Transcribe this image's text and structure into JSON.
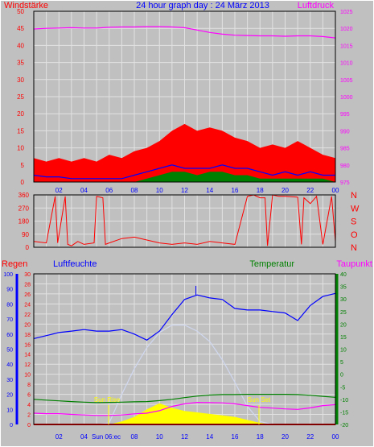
{
  "title": "24 hour graph day : 24 März 2013",
  "colors": {
    "background": "#c0c0c0",
    "grid": "#e2e2e2",
    "wind": "#ff0000",
    "gust_fill": "#ff0000",
    "wind_avg": "#0000ff",
    "wind_low": "#008000",
    "pressure": "#ff00ff",
    "direction": "#ff0000",
    "humidity": "#0000ff",
    "temperature": "#008000",
    "dewpoint": "#ff00ff",
    "rain": "#ff0000",
    "solar": "#ffff00",
    "solar_max": "#d0d8f0",
    "frame": "#000000"
  },
  "chart_data": [
    {
      "type": "line",
      "panel": "wind_pressure",
      "labels": {
        "left": "Windstärke",
        "right": "Luftdruck"
      },
      "x_ticks": [
        "02",
        "04",
        "06",
        "08",
        "10",
        "12",
        "14",
        "16",
        "18",
        "20",
        "22",
        "00"
      ],
      "y_left": {
        "min": 0,
        "max": 50,
        "ticks": [
          0,
          5,
          10,
          15,
          20,
          25,
          30,
          35,
          40,
          45,
          50
        ]
      },
      "y_right": {
        "min": 975,
        "max": 1025,
        "ticks": [
          975,
          980,
          985,
          990,
          995,
          1000,
          1005,
          1010,
          1015,
          1020,
          1025
        ]
      },
      "x": [
        0,
        1,
        2,
        3,
        4,
        5,
        6,
        7,
        8,
        9,
        10,
        11,
        12,
        13,
        14,
        15,
        16,
        17,
        18,
        19,
        20,
        21,
        22,
        23,
        24
      ],
      "series": [
        {
          "key": "gust",
          "values": [
            7,
            6,
            7,
            6,
            7,
            6,
            8,
            7,
            9,
            10,
            12,
            15,
            17,
            15,
            16,
            15,
            13,
            12,
            10,
            11,
            10,
            12,
            10,
            8,
            7
          ]
        },
        {
          "key": "wind",
          "values": [
            5,
            5,
            5,
            5,
            5,
            5,
            5,
            5,
            5,
            5,
            5,
            5,
            5,
            5,
            5,
            5,
            5,
            5,
            5,
            5,
            5,
            5,
            5,
            5,
            5
          ]
        },
        {
          "key": "wind_avg",
          "values": [
            2,
            1.5,
            1.5,
            1,
            1,
            1,
            1,
            1,
            2,
            3,
            4,
            5,
            4,
            4,
            4,
            5,
            4,
            4,
            3,
            2,
            3,
            2,
            3,
            2,
            2
          ]
        },
        {
          "key": "wind_low",
          "values": [
            0,
            0,
            0,
            0,
            0,
            0,
            0,
            0,
            0,
            1,
            2,
            3,
            3,
            2,
            3,
            3,
            2,
            2,
            1,
            1,
            1,
            1,
            1,
            1,
            0
          ]
        },
        {
          "key": "pressure",
          "values": [
            1019.8,
            1020,
            1020.1,
            1020.2,
            1020.1,
            1020.1,
            1020.3,
            1020.4,
            1020.4,
            1020.5,
            1020.5,
            1020.4,
            1020.2,
            1019.5,
            1018.8,
            1018.3,
            1018,
            1017.9,
            1017.8,
            1017.8,
            1017.7,
            1017.8,
            1017.8,
            1017.6,
            1017.2
          ]
        }
      ]
    },
    {
      "type": "line",
      "panel": "wind_direction",
      "y_left": {
        "min": 0,
        "max": 360,
        "ticks": [
          0,
          90,
          180,
          270,
          360
        ]
      },
      "y_right_labels": [
        "N",
        "W",
        "S",
        "O",
        "N"
      ],
      "x": [
        0,
        1,
        1.7,
        1.9,
        2.5,
        2.7,
        3,
        3.5,
        4,
        4.8,
        5,
        5.5,
        5.7,
        6,
        7,
        8,
        9,
        10,
        11,
        12,
        13,
        14,
        15,
        16,
        17,
        17.5,
        18,
        18.4,
        18.6,
        19,
        19.5,
        20,
        21,
        21.3,
        21.5,
        22,
        22.5,
        23,
        23.7,
        24
      ],
      "values": [
        40,
        30,
        350,
        30,
        350,
        20,
        10,
        40,
        20,
        30,
        350,
        340,
        20,
        30,
        60,
        70,
        50,
        30,
        20,
        30,
        20,
        40,
        30,
        20,
        350,
        360,
        340,
        340,
        10,
        360,
        350,
        350,
        345,
        20,
        340,
        300,
        350,
        20,
        350,
        40
      ]
    },
    {
      "type": "line",
      "panel": "humidity_temperature",
      "labels": {
        "rain": "Regen",
        "humidity": "Luftfeuchte",
        "temperature": "Temperatur",
        "dewpoint": "Taupunkt"
      },
      "x_ticks": [
        "02",
        "04",
        "06",
        "08",
        "10",
        "12",
        "14",
        "16",
        "18",
        "20",
        "22",
        "00"
      ],
      "annotations": {
        "sunrise": "Sun Rise",
        "sunset": "Sun Set",
        "sun_time": "Sun 06:ec"
      },
      "y_humidity": {
        "min": 0,
        "max": 100,
        "ticks": [
          0,
          10,
          20,
          30,
          40,
          50,
          60,
          70,
          80,
          90,
          100
        ]
      },
      "y_rain": {
        "min": 0,
        "max": 30,
        "ticks": [
          0,
          2,
          4,
          6,
          8,
          10,
          12,
          14,
          16,
          18,
          20,
          22,
          24,
          26,
          28,
          30
        ]
      },
      "y_temperature": {
        "min": -20,
        "max": 40,
        "ticks": [
          -20,
          -15,
          -10,
          -5,
          0,
          5,
          10,
          15,
          20,
          25,
          30,
          35,
          40
        ]
      },
      "x": [
        0,
        1,
        2,
        3,
        4,
        5,
        6,
        7,
        8,
        9,
        10,
        11,
        12,
        13,
        14,
        15,
        16,
        17,
        18,
        19,
        20,
        21,
        22,
        23,
        24
      ],
      "series": [
        {
          "key": "humidity",
          "values": [
            57,
            59,
            61,
            62,
            63,
            62,
            62,
            63,
            60,
            56,
            62,
            73,
            83,
            86,
            84,
            83,
            77,
            76,
            76,
            75,
            74,
            69,
            79,
            85,
            87
          ]
        },
        {
          "key": "temperature",
          "values": [
            -10,
            -10.3,
            -10.6,
            -10.9,
            -11.1,
            -11.3,
            -11.2,
            -11.1,
            -11,
            -10.9,
            -10.5,
            -10,
            -9.3,
            -8.7,
            -8.3,
            -8.1,
            -8.1,
            -8,
            -8,
            -8,
            -8,
            -8.1,
            -8.4,
            -8.8,
            -9.2
          ]
        },
        {
          "key": "dewpoint",
          "values": [
            -15.5,
            -15.7,
            -15.7,
            -16,
            -16.2,
            -16.4,
            -16.4,
            -16.2,
            -15.8,
            -15.5,
            -14.5,
            -12.8,
            -11.8,
            -11.2,
            -11.3,
            -11.4,
            -11.8,
            -12.5,
            -13.2,
            -13.5,
            -13.8,
            -14,
            -13.4,
            -12.5,
            -12.1
          ]
        },
        {
          "key": "solar",
          "values": [
            0,
            0,
            0,
            0,
            0,
            0,
            0,
            2,
            5,
            10,
            14,
            11,
            9,
            8,
            7,
            6,
            5,
            3,
            1,
            0,
            0,
            0,
            0,
            0,
            0
          ]
        },
        {
          "key": "solar_max",
          "values": [
            0,
            0,
            0,
            0,
            0,
            0,
            1,
            20,
            37,
            51,
            61,
            66,
            66,
            62,
            55,
            43,
            28,
            12,
            2,
            0,
            0,
            0,
            0,
            0,
            0
          ]
        },
        {
          "key": "rain",
          "values": [
            0,
            0,
            0,
            0,
            0,
            0,
            0,
            0,
            0,
            0,
            0,
            0,
            0,
            0,
            0,
            0,
            0,
            0,
            0,
            0,
            0,
            0,
            0,
            0,
            0
          ]
        }
      ]
    }
  ]
}
